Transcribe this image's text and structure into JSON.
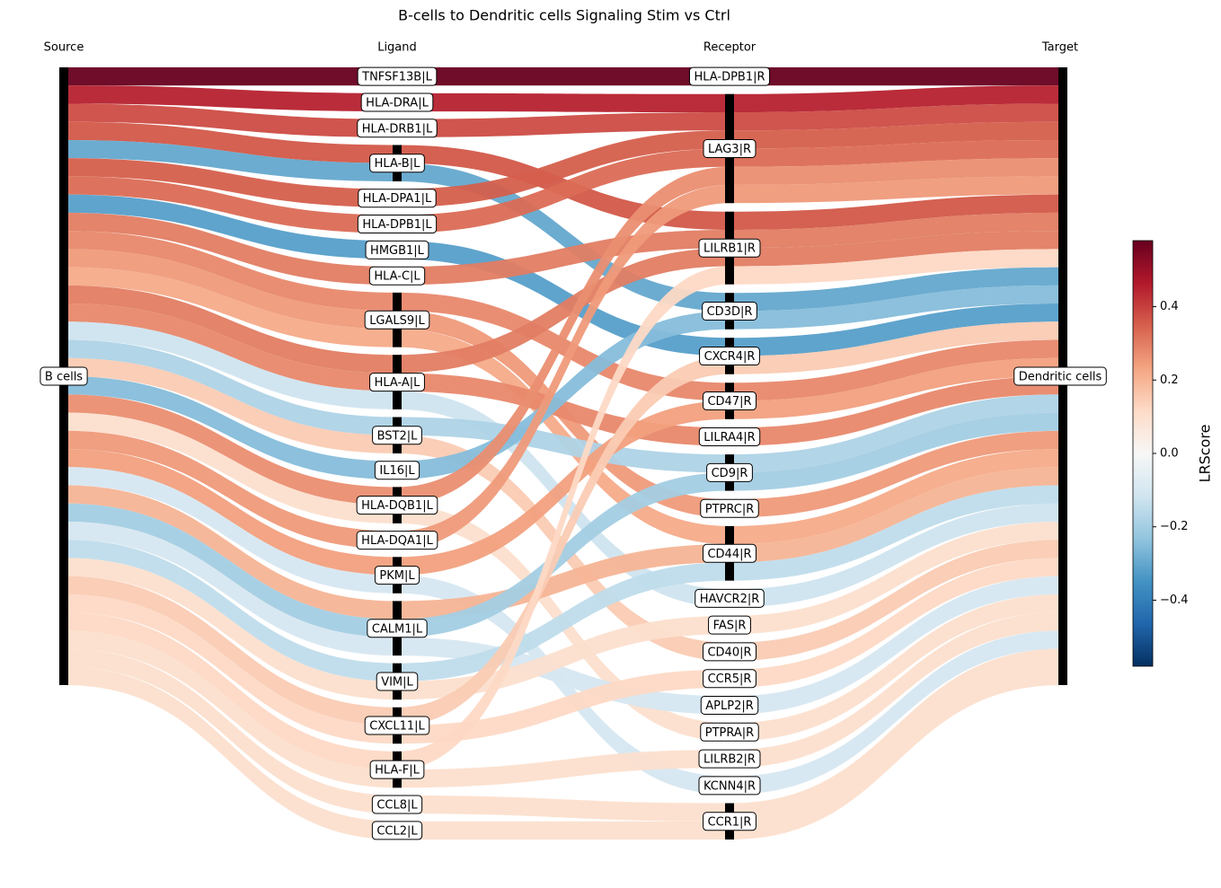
{
  "chart_data": {
    "type": "sankey",
    "title": "B-cells to Dendritic cells Signaling Stim vs Ctrl",
    "column_headers": [
      "Source",
      "Ligand",
      "Receptor",
      "Target"
    ],
    "source": "B cells",
    "target": "Dendritic cells",
    "ligands": [
      "TNFSF13B|L",
      "HLA-DRA|L",
      "HLA-DRB1|L",
      "HLA-B|L",
      "HLA-DPA1|L",
      "HLA-DPB1|L",
      "HMGB1|L",
      "HLA-C|L",
      "LGALS9|L",
      "HLA-A|L",
      "BST2|L",
      "IL16|L",
      "HLA-DQB1|L",
      "HLA-DQA1|L",
      "PKM|L",
      "CALM1|L",
      "VIM|L",
      "CXCL11|L",
      "HLA-F|L",
      "CCL8|L",
      "CCL2|L"
    ],
    "receptors": [
      "HLA-DPB1|R",
      "LAG3|R",
      "LILRB1|R",
      "CD3D|R",
      "CXCR4|R",
      "CD47|R",
      "LILRA4|R",
      "CD9|R",
      "PTPRC|R",
      "CD44|R",
      "HAVCR2|R",
      "FAS|R",
      "CD40|R",
      "CCR5|R",
      "APLP2|R",
      "PTPRA|R",
      "LILRB2|R",
      "KCNN4|R",
      "CCR1|R"
    ],
    "links": [
      {
        "ligand": 0,
        "receptor": 0,
        "score": 0.58
      },
      {
        "ligand": 1,
        "receptor": 1,
        "score": 0.45
      },
      {
        "ligand": 2,
        "receptor": 1,
        "score": 0.38
      },
      {
        "ligand": 3,
        "receptor": 2,
        "score": 0.36
      },
      {
        "ligand": 3,
        "receptor": 3,
        "score": -0.3
      },
      {
        "ligand": 4,
        "receptor": 1,
        "score": 0.35
      },
      {
        "ligand": 5,
        "receptor": 1,
        "score": 0.33
      },
      {
        "ligand": 6,
        "receptor": 4,
        "score": -0.32
      },
      {
        "ligand": 7,
        "receptor": 2,
        "score": 0.3
      },
      {
        "ligand": 8,
        "receptor": 5,
        "score": 0.28
      },
      {
        "ligand": 8,
        "receptor": 8,
        "score": 0.25
      },
      {
        "ligand": 8,
        "receptor": 9,
        "score": 0.22
      },
      {
        "ligand": 9,
        "receptor": 2,
        "score": 0.3
      },
      {
        "ligand": 9,
        "receptor": 6,
        "score": 0.28
      },
      {
        "ligand": 9,
        "receptor": 10,
        "score": -0.12
      },
      {
        "ligand": 10,
        "receptor": 7,
        "score": -0.18
      },
      {
        "ligand": 10,
        "receptor": 12,
        "score": 0.15
      },
      {
        "ligand": 11,
        "receptor": 3,
        "score": -0.25
      },
      {
        "ligand": 12,
        "receptor": 1,
        "score": 0.27
      },
      {
        "ligand": 12,
        "receptor": 15,
        "score": 0.1
      },
      {
        "ligand": 13,
        "receptor": 1,
        "score": 0.25
      },
      {
        "ligand": 14,
        "receptor": 5,
        "score": 0.24
      },
      {
        "ligand": 14,
        "receptor": 17,
        "score": -0.1
      },
      {
        "ligand": 15,
        "receptor": 9,
        "score": 0.2
      },
      {
        "ligand": 15,
        "receptor": 7,
        "score": -0.2
      },
      {
        "ligand": 15,
        "receptor": 14,
        "score": -0.1
      },
      {
        "ligand": 16,
        "receptor": 9,
        "score": -0.15
      },
      {
        "ligand": 16,
        "receptor": 11,
        "score": 0.1
      },
      {
        "ligand": 17,
        "receptor": 4,
        "score": 0.15
      },
      {
        "ligand": 17,
        "receptor": 13,
        "score": 0.12
      },
      {
        "ligand": 18,
        "receptor": 2,
        "score": 0.12
      },
      {
        "ligand": 18,
        "receptor": 16,
        "score": 0.1
      },
      {
        "ligand": 19,
        "receptor": 18,
        "score": 0.1
      },
      {
        "ligand": 20,
        "receptor": 18,
        "score": 0.1
      }
    ],
    "colorbar_label": "LRScore",
    "colormap": [
      "#053061",
      "#2166ac",
      "#4393c3",
      "#92c5de",
      "#d1e5f0",
      "#f7f7f7",
      "#fddbc7",
      "#f4a582",
      "#d6604d",
      "#b2182b",
      "#67001f"
    ],
    "clim": [
      -0.58,
      0.58
    ],
    "cticks": [
      {
        "value": -0.4,
        "label": "−0.4"
      },
      {
        "value": -0.2,
        "label": "−0.2"
      },
      {
        "value": 0,
        "label": "0.0"
      },
      0.2,
      0.4
    ]
  }
}
